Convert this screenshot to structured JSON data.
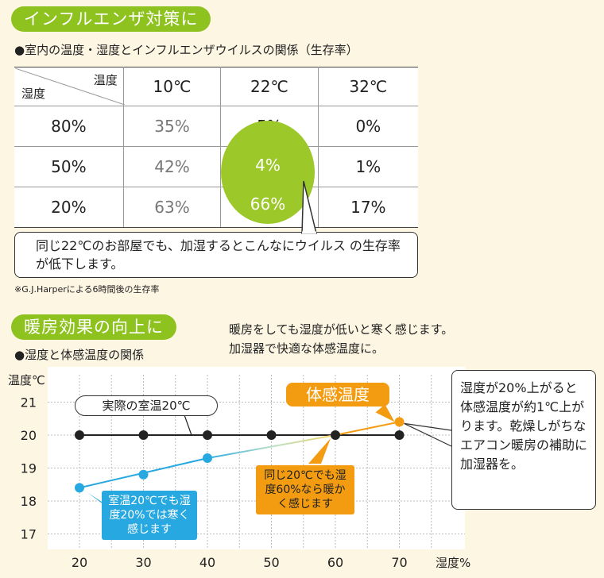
{
  "section1": {
    "pill": "インフルエンザ対策に",
    "heading": "●室内の温度・湿度とインフルエンザウイルスの関係（生存率）",
    "table": {
      "corner_top": "温度",
      "corner_bottom": "湿度",
      "temps": [
        "10℃",
        "22℃",
        "32℃"
      ],
      "rows": [
        {
          "humidity": "80%",
          "values": [
            "35%",
            "5%",
            "0%"
          ]
        },
        {
          "humidity": "50%",
          "values": [
            "42%",
            "4%",
            "1%"
          ]
        },
        {
          "humidity": "20%",
          "values": [
            "63%",
            "66%",
            "17%"
          ]
        }
      ]
    },
    "callout": "同じ22℃のお部屋でも、加湿するとこんなにウイルス の生存率が低下します。",
    "note": "※G.J.Harperによる6時間後の生存率",
    "highlight_color": "#9cc82a"
  },
  "section2": {
    "pill": "暖房効果の向上に",
    "heading": "●湿度と体感温度の関係",
    "intro_line1": "暖房をしても湿度が低いと寒く感じます。",
    "intro_line2": "加湿器で快適な体感温度に。",
    "side_callout": "湿度が20%上がると体感温度が約1℃上がります。乾燥しがちなエアコン暖房の補助に加湿器を。"
  },
  "chart_data": {
    "type": "line",
    "ylabel": "温度℃",
    "xlabel": "湿度%",
    "x_ticks": [
      20,
      30,
      40,
      50,
      60,
      70
    ],
    "y_ticks": [
      17,
      18,
      19,
      20,
      21
    ],
    "xlim": [
      20,
      70
    ],
    "ylim": [
      17,
      21
    ],
    "grid": true,
    "series": [
      {
        "name": "実際の室温20℃",
        "color": "#222222",
        "x": [
          20,
          30,
          40,
          50,
          60,
          70
        ],
        "y": [
          20,
          20,
          20,
          20,
          20,
          20
        ]
      },
      {
        "name": "体感温度",
        "color": "#27a8e0",
        "accent_color": "#f39c12",
        "x": [
          20,
          30,
          40,
          60,
          70
        ],
        "y": [
          18.4,
          18.8,
          19.3,
          20.0,
          20.4
        ]
      }
    ],
    "annotations": {
      "low": "室温20℃でも湿度20%では寒く感じます",
      "mid": "同じ20℃でも湿度60%なら暖かく感じます"
    }
  }
}
